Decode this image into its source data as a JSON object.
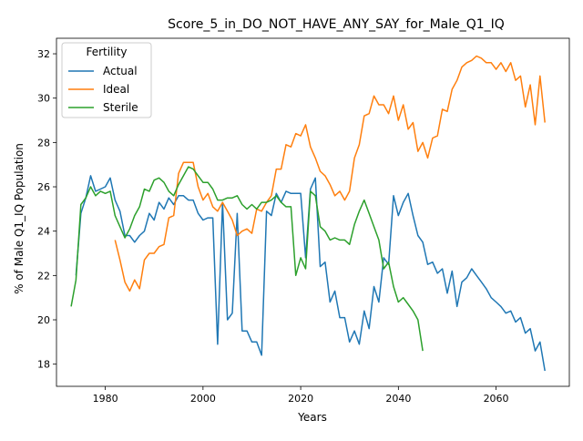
{
  "chart_data": {
    "type": "line",
    "title": "Score_5_in_DO_NOT_HAVE_ANY_SAY_for_Male_Q1_IQ",
    "xlabel": "Years",
    "ylabel": "% of Male Q1_IQ Population",
    "xlim": [
      1970,
      2075
    ],
    "ylim": [
      17.0,
      32.7
    ],
    "xticks": [
      1980,
      2000,
      2020,
      2040,
      2060
    ],
    "yticks": [
      18,
      20,
      22,
      24,
      26,
      28,
      30,
      32
    ],
    "grid": false,
    "legend": {
      "title": "Fertility",
      "placement": "upper left"
    },
    "series": [
      {
        "name": "Actual",
        "color": "#1f77b4",
        "x": [
          1974,
          1975,
          1976,
          1977,
          1978,
          1979,
          1980,
          1981,
          1982,
          1983,
          1984,
          1985,
          1986,
          1987,
          1988,
          1989,
          1990,
          1991,
          1992,
          1993,
          1994,
          1995,
          1996,
          1997,
          1998,
          1999,
          2000,
          2001,
          2002,
          2003,
          2004,
          2005,
          2006,
          2007,
          2008,
          2009,
          2010,
          2011,
          2012,
          2013,
          2014,
          2015,
          2016,
          2017,
          2018,
          2019,
          2020,
          2021,
          2022,
          2023,
          2024,
          2025,
          2026,
          2027,
          2028,
          2029,
          2030,
          2031,
          2032,
          2033,
          2034,
          2035,
          2036,
          2037,
          2038,
          2039,
          2040,
          2041,
          2042,
          2043,
          2044,
          2045,
          2046,
          2047,
          2048,
          2049,
          2050,
          2051,
          2052,
          2053,
          2054,
          2055,
          2056,
          2057,
          2058,
          2059,
          2060,
          2061,
          2062,
          2063,
          2064,
          2065,
          2066,
          2067,
          2068,
          2069,
          2070
        ],
        "values": [
          22.0,
          24.8,
          25.5,
          26.5,
          25.8,
          25.9,
          26.0,
          26.4,
          25.4,
          24.9,
          23.8,
          23.8,
          23.5,
          23.8,
          24.0,
          24.8,
          24.5,
          25.3,
          25.0,
          25.5,
          25.2,
          25.6,
          25.6,
          25.4,
          25.4,
          24.8,
          24.5,
          24.6,
          24.6,
          18.9,
          25.3,
          20.0,
          20.3,
          24.8,
          19.5,
          19.5,
          19.0,
          19.0,
          18.4,
          24.9,
          24.7,
          25.7,
          25.3,
          25.8,
          25.7,
          25.7,
          25.7,
          22.8,
          25.9,
          26.4,
          22.4,
          22.6,
          20.8,
          21.3,
          20.1,
          20.1,
          19.0,
          19.5,
          18.9,
          20.4,
          19.6,
          21.5,
          20.8,
          22.8,
          22.5,
          25.6,
          24.7,
          25.3,
          25.7,
          24.7,
          23.8,
          23.5,
          22.5,
          22.6,
          22.1,
          22.3,
          21.2,
          22.2,
          20.6,
          21.7,
          21.9,
          22.3,
          22.0,
          21.7,
          21.4,
          21.0,
          20.8,
          20.6,
          20.3,
          20.4,
          19.9,
          20.1,
          19.4,
          19.6,
          18.6,
          19.0,
          17.7
        ]
      },
      {
        "name": "Ideal",
        "color": "#ff7f0e",
        "x": [
          1982,
          1983,
          1984,
          1985,
          1986,
          1987,
          1988,
          1989,
          1990,
          1991,
          1992,
          1993,
          1994,
          1995,
          1996,
          1997,
          1998,
          1999,
          2000,
          2001,
          2002,
          2003,
          2004,
          2005,
          2006,
          2007,
          2008,
          2009,
          2010,
          2011,
          2012,
          2013,
          2014,
          2015,
          2016,
          2017,
          2018,
          2019,
          2020,
          2021,
          2022,
          2023,
          2024,
          2025,
          2026,
          2027,
          2028,
          2029,
          2030,
          2031,
          2032,
          2033,
          2034,
          2035,
          2036,
          2037,
          2038,
          2039,
          2040,
          2041,
          2042,
          2043,
          2044,
          2045,
          2046,
          2047,
          2048,
          2049,
          2050,
          2051,
          2052,
          2053,
          2054,
          2055,
          2056,
          2057,
          2058,
          2059,
          2060,
          2061,
          2062,
          2063,
          2064,
          2065,
          2066,
          2067,
          2068,
          2069,
          2070
        ],
        "values": [
          23.6,
          22.7,
          21.7,
          21.3,
          21.8,
          21.4,
          22.7,
          23.0,
          23.0,
          23.3,
          23.4,
          24.6,
          24.7,
          26.6,
          27.1,
          27.1,
          27.1,
          26.0,
          25.4,
          25.7,
          25.1,
          24.9,
          25.3,
          24.9,
          24.5,
          23.8,
          24.0,
          24.1,
          23.9,
          25.0,
          24.9,
          25.3,
          25.6,
          26.8,
          26.8,
          27.9,
          27.8,
          28.4,
          28.3,
          28.8,
          27.8,
          27.3,
          26.7,
          26.5,
          26.1,
          25.6,
          25.8,
          25.4,
          25.8,
          27.3,
          27.9,
          29.2,
          29.3,
          30.1,
          29.7,
          29.7,
          29.3,
          30.1,
          29.0,
          29.7,
          28.6,
          28.9,
          27.6,
          28.0,
          27.3,
          28.2,
          28.3,
          29.5,
          29.4,
          30.4,
          30.8,
          31.4,
          31.6,
          31.7,
          31.9,
          31.8,
          31.6,
          31.6,
          31.3,
          31.6,
          31.2,
          31.6,
          30.8,
          31.0,
          29.6,
          30.6,
          28.8,
          31.0,
          28.9
        ]
      },
      {
        "name": "Sterile",
        "color": "#2ca02c",
        "x": [
          1973,
          1974,
          1975,
          1976,
          1977,
          1978,
          1979,
          1980,
          1981,
          1982,
          1983,
          1984,
          1985,
          1986,
          1987,
          1988,
          1989,
          1990,
          1991,
          1992,
          1993,
          1994,
          1995,
          1996,
          1997,
          1998,
          1999,
          2000,
          2001,
          2002,
          2003,
          2004,
          2005,
          2006,
          2007,
          2008,
          2009,
          2010,
          2011,
          2012,
          2013,
          2014,
          2015,
          2016,
          2017,
          2018,
          2019,
          2020,
          2021,
          2022,
          2023,
          2024,
          2025,
          2026,
          2027,
          2028,
          2029,
          2030,
          2031,
          2032,
          2033,
          2034,
          2035,
          2036,
          2037,
          2038,
          2039,
          2040,
          2041,
          2042,
          2043,
          2044,
          2045
        ],
        "values": [
          20.6,
          21.8,
          25.2,
          25.5,
          26.0,
          25.6,
          25.8,
          25.7,
          25.8,
          24.7,
          24.2,
          23.7,
          24.1,
          24.7,
          25.1,
          25.9,
          25.8,
          26.3,
          26.4,
          26.2,
          25.8,
          25.6,
          26.1,
          26.5,
          26.9,
          26.8,
          26.5,
          26.2,
          26.2,
          25.9,
          25.4,
          25.4,
          25.5,
          25.5,
          25.6,
          25.2,
          25.0,
          25.2,
          25.0,
          25.3,
          25.3,
          25.4,
          25.6,
          25.3,
          25.1,
          25.1,
          22.0,
          22.8,
          22.3,
          25.8,
          25.6,
          24.2,
          24.0,
          23.6,
          23.7,
          23.6,
          23.6,
          23.4,
          24.3,
          24.9,
          25.4,
          24.8,
          24.2,
          23.6,
          22.3,
          22.6,
          21.5,
          20.8,
          21.0,
          20.7,
          20.4,
          20.0,
          18.6
        ]
      }
    ]
  }
}
